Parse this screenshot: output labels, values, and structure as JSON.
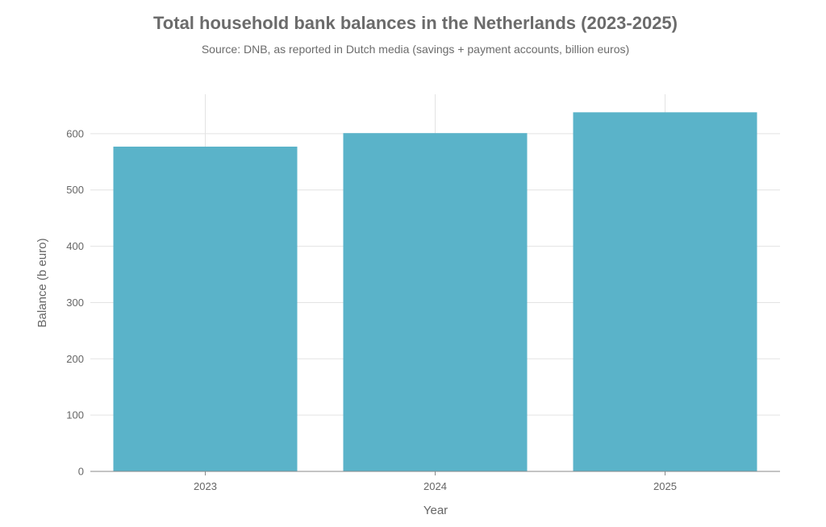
{
  "chart_data": {
    "type": "bar",
    "title": "Total household bank balances in the Netherlands (2023-2025)",
    "subtitle": "Source: DNB, as reported in Dutch media (savings + payment accounts, billion euros)",
    "xlabel": "Year",
    "ylabel": "Balance (b euro)",
    "categories": [
      "2023",
      "2024",
      "2025"
    ],
    "values": [
      577,
      601,
      638
    ],
    "ylim": [
      0,
      670
    ],
    "yticks": [
      0,
      100,
      200,
      300,
      400,
      500,
      600
    ],
    "grid": true,
    "legend": "none",
    "colors": {
      "bar": "#5ab3c9",
      "grid": "#e3e3e3",
      "axis": "#8a8a8a",
      "text": "#6b6b6b"
    }
  }
}
